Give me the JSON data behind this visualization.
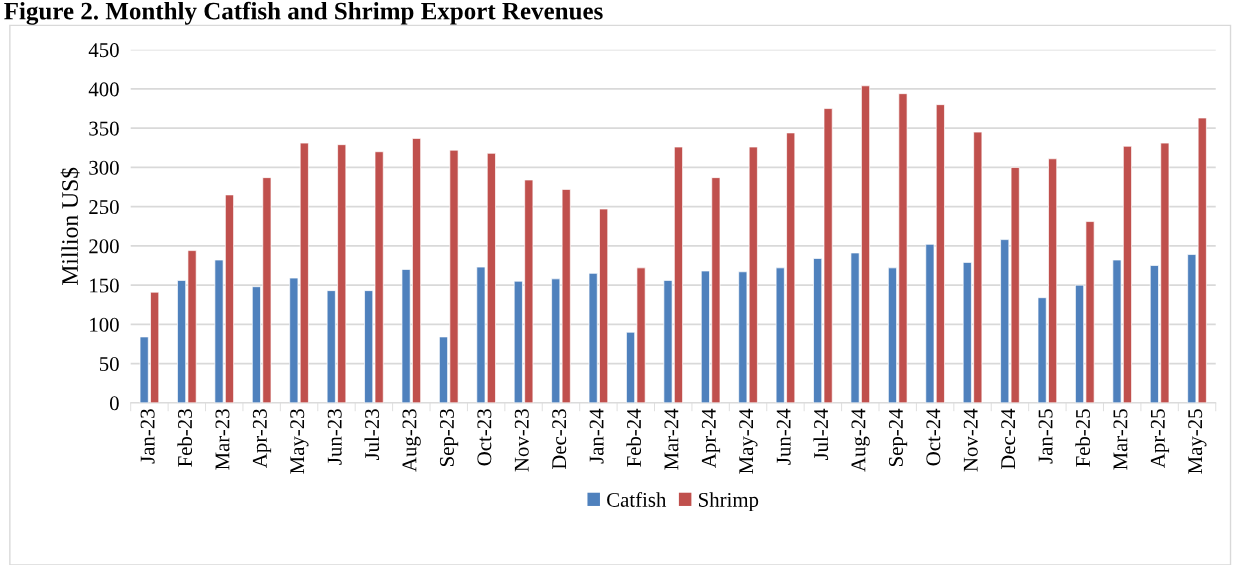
{
  "chart_data": {
    "type": "bar",
    "title": "Figure 2. Monthly Catfish and Shrimp Export Revenues",
    "ylabel": "Million US$",
    "categories": [
      "Jan-23",
      "Feb-23",
      "Mar-23",
      "Apr-23",
      "May-23",
      "Jun-23",
      "Jul-23",
      "Aug-23",
      "Sep-23",
      "Oct-23",
      "Nov-23",
      "Dec-23",
      "Jan-24",
      "Feb-24",
      "Mar-24",
      "Apr-24",
      "May-24",
      "Jun-24",
      "Jul-24",
      "Aug-24",
      "Sep-24",
      "Oct-24",
      "Nov-24",
      "Dec-24",
      "Jan-25",
      "Feb-25",
      "Mar-25",
      "Apr-25",
      "May-25"
    ],
    "series": [
      {
        "name": "Catfish",
        "color": "#4f81bd",
        "values": [
          84,
          156,
          182,
          148,
          159,
          143,
          143,
          170,
          84,
          173,
          155,
          158,
          165,
          90,
          156,
          168,
          167,
          172,
          184,
          191,
          172,
          202,
          179,
          208,
          134,
          150,
          182,
          175,
          189
        ]
      },
      {
        "name": "Shrimp",
        "color": "#c0504d",
        "values": [
          141,
          194,
          265,
          287,
          331,
          329,
          320,
          337,
          322,
          318,
          284,
          272,
          247,
          172,
          326,
          287,
          326,
          344,
          375,
          404,
          394,
          380,
          345,
          300,
          311,
          231,
          327,
          331,
          363
        ]
      }
    ],
    "ylim": [
      0,
      450
    ],
    "yticks": [
      0,
      50,
      100,
      150,
      200,
      250,
      300,
      350,
      400,
      450
    ],
    "grid": "y",
    "legend": "bottom"
  }
}
